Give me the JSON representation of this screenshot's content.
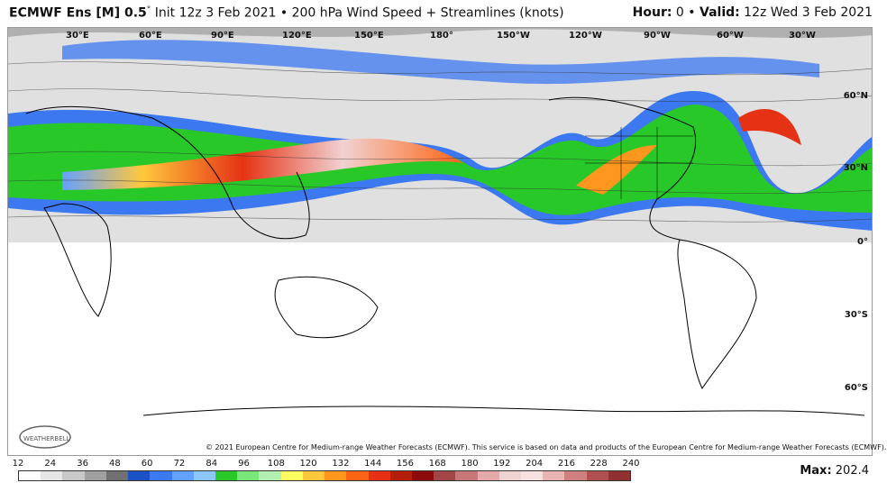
{
  "header": {
    "model": "ECMWF Ens [M] 0.5",
    "degree_symbol": "°",
    "init": " Init 12z 3 Feb 2021 • 200 hPa Wind Speed + Streamlines (knots)",
    "hour_label": "Hour:",
    "hour_value": " 0 • ",
    "valid_label": "Valid:",
    "valid_value": " 12z Wed 3 Feb 2021"
  },
  "map": {
    "longitude_labels": [
      "30°E",
      "60°E",
      "90°E",
      "120°E",
      "150°E",
      "180°",
      "150°W",
      "120°W",
      "90°W",
      "60°W",
      "30°W"
    ],
    "latitude_labels": [
      "60°N",
      "30°N",
      "0°",
      "30°S",
      "60°S"
    ],
    "copyright": "© 2021 European Centre for Medium-range Weather Forecasts (ECMWF). This service is based on data and products of the European Centre for Medium-range Weather Forecasts (ECMWF).",
    "logo_text": "WEATHERBELL"
  },
  "legend": {
    "ticks": [
      "12",
      "24",
      "36",
      "48",
      "60",
      "72",
      "84",
      "96",
      "108",
      "120",
      "132",
      "144",
      "156",
      "168",
      "180",
      "192",
      "204",
      "216",
      "228",
      "240"
    ],
    "colors": [
      "#ffffff",
      "#e6e6e6",
      "#c8c8c8",
      "#a0a0a0",
      "#707070",
      "#1e50c8",
      "#3c78f0",
      "#64a0ff",
      "#8cc8ff",
      "#28c828",
      "#78e678",
      "#b4f0b4",
      "#ffff64",
      "#ffc83c",
      "#ff961e",
      "#ff6414",
      "#e63214",
      "#b41e0a",
      "#8c0a0a",
      "#a04646",
      "#c87878",
      "#e6aaaa",
      "#f0d2d2",
      "#f6e0e0",
      "#e8b4b4",
      "#d08080",
      "#b05050",
      "#903030"
    ],
    "max_label": "Max:",
    "max_value": " 202.4"
  }
}
